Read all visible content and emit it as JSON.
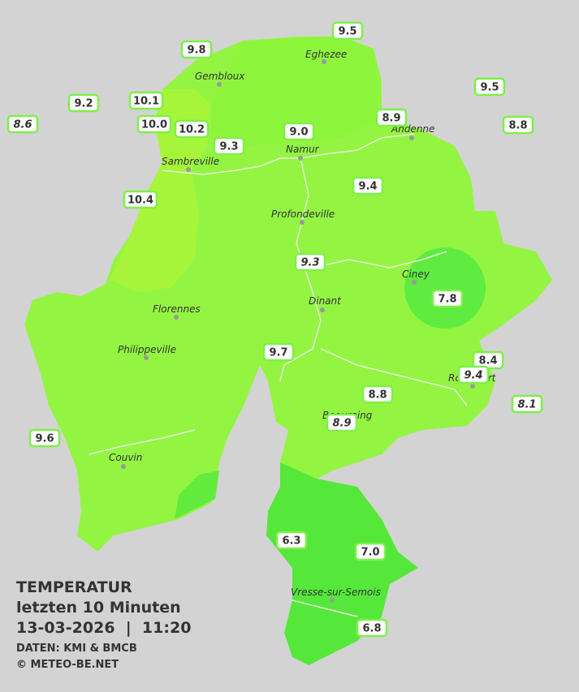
{
  "title": {
    "heading": "TEMPERATUR",
    "period": "letzten 10 Minuten",
    "timestamp": "13-03-2026  |  11:20",
    "source": "DATEN: KMI & BMCB",
    "credit": "© METEO-BE.NET"
  },
  "cities": [
    "Eghezee",
    "Gembloux",
    "Andenne",
    "Namur",
    "Sambreville",
    "Profondeville",
    "Ciney",
    "Dinant",
    "Florennes",
    "Philippeville",
    "Rochefort",
    "Beauraing",
    "Couvin",
    "Vresse-sur-Semois"
  ],
  "stations": [
    "9.5",
    "9.8",
    "9.2",
    "8.6",
    "10.1",
    "10.0",
    "10.2",
    "9.3",
    "9.0",
    "8.9",
    "9.5",
    "8.8",
    "9.4",
    "10.4",
    "9.3",
    "7.8",
    "9.7",
    "8.4",
    "9.4",
    "8.1",
    "8.8",
    "8.9",
    "9.6",
    "6.3",
    "7.0",
    "6.8"
  ]
}
